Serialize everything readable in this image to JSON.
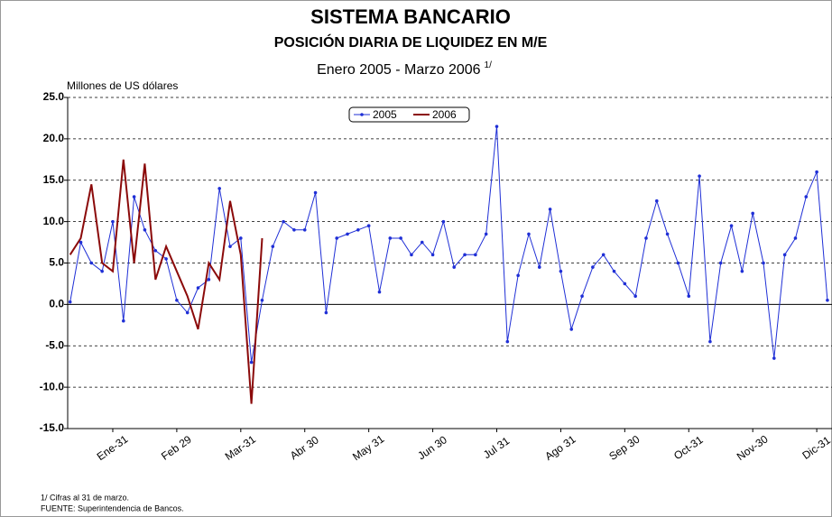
{
  "chart_data": {
    "type": "line",
    "title": "SISTEMA BANCARIO",
    "subtitle": "POSICIÓN DIARIA DE LIQUIDEZ EN M/E",
    "period": "Enero 2005 - Marzo 2006",
    "period_note": "1/",
    "y_label": "Millones de US dólares",
    "footnotes": [
      "1/ Cifras al 31 de marzo.",
      "FUENTE: Superintendencia de Bancos."
    ],
    "categories": [
      null,
      null,
      null,
      null,
      "Ene-31",
      null,
      null,
      null,
      null,
      null,
      "Feb 29",
      null,
      null,
      null,
      null,
      null,
      "Mar-31",
      null,
      null,
      null,
      null,
      null,
      "Abr 30",
      null,
      null,
      null,
      null,
      null,
      "May 31",
      null,
      null,
      null,
      null,
      null,
      "Jun 30",
      null,
      null,
      null,
      null,
      null,
      "Jul 31",
      null,
      null,
      null,
      null,
      null,
      "Ago 31",
      null,
      null,
      null,
      null,
      null,
      "Sep 30",
      null,
      null,
      null,
      null,
      null,
      "Oct-31",
      null,
      null,
      null,
      null,
      null,
      "Nov-30",
      null,
      null,
      null,
      null,
      null,
      "Dic-31",
      null
    ],
    "series": [
      {
        "name": "2005",
        "color": "#1f2fd6",
        "values": [
          0.3,
          7.5,
          5,
          4,
          10,
          -2,
          13,
          9,
          6.5,
          5.5,
          0.5,
          -1,
          2,
          3,
          14,
          7,
          8,
          -7,
          0.5,
          7,
          10,
          9,
          9,
          13.5,
          -1,
          8,
          8.5,
          9,
          9.5,
          1.5,
          8,
          8,
          6,
          7.5,
          6,
          10,
          4.5,
          6,
          6,
          8.5,
          21.5,
          -4.5,
          3.5,
          8.5,
          4.5,
          11.5,
          4,
          -3,
          1,
          4.5,
          6,
          4,
          2.5,
          1,
          8,
          12.5,
          8.5,
          5,
          1,
          15.5,
          -4.5,
          5,
          9.5,
          4,
          11,
          5,
          -6.5,
          6,
          8,
          13,
          16,
          0.5
        ]
      },
      {
        "name": "2006",
        "color": "#8b0a0a",
        "values": [
          6,
          8,
          14.5,
          5,
          4,
          17.5,
          5,
          17,
          3,
          7,
          4,
          1,
          -3,
          5,
          3,
          12.5,
          6,
          -12,
          8,
          null,
          null,
          null,
          null,
          null,
          null,
          null,
          null,
          null,
          null,
          null,
          null,
          null,
          null,
          null,
          null,
          null,
          null,
          null,
          null,
          null,
          null,
          null,
          null,
          null,
          null,
          null,
          null,
          null,
          null,
          null,
          null,
          null,
          null,
          null,
          null,
          null,
          null,
          null,
          null,
          null,
          null,
          null,
          null,
          null,
          null,
          null,
          null,
          null,
          null,
          null,
          null,
          null
        ]
      }
    ],
    "ylim": [
      -15,
      25
    ],
    "yticks": [
      {
        "value": -15,
        "label": "-15.0"
      },
      {
        "value": -10,
        "label": "-10.0"
      },
      {
        "value": -5,
        "label": "-5.0"
      },
      {
        "value": 0,
        "label": "0.0"
      },
      {
        "value": 5,
        "label": "5.0"
      },
      {
        "value": 10,
        "label": "10.0"
      },
      {
        "value": 15,
        "label": "15.0"
      },
      {
        "value": 20,
        "label": "20.0"
      },
      {
        "value": 25,
        "label": "25.0"
      }
    ],
    "grid": true,
    "legend": "top"
  }
}
